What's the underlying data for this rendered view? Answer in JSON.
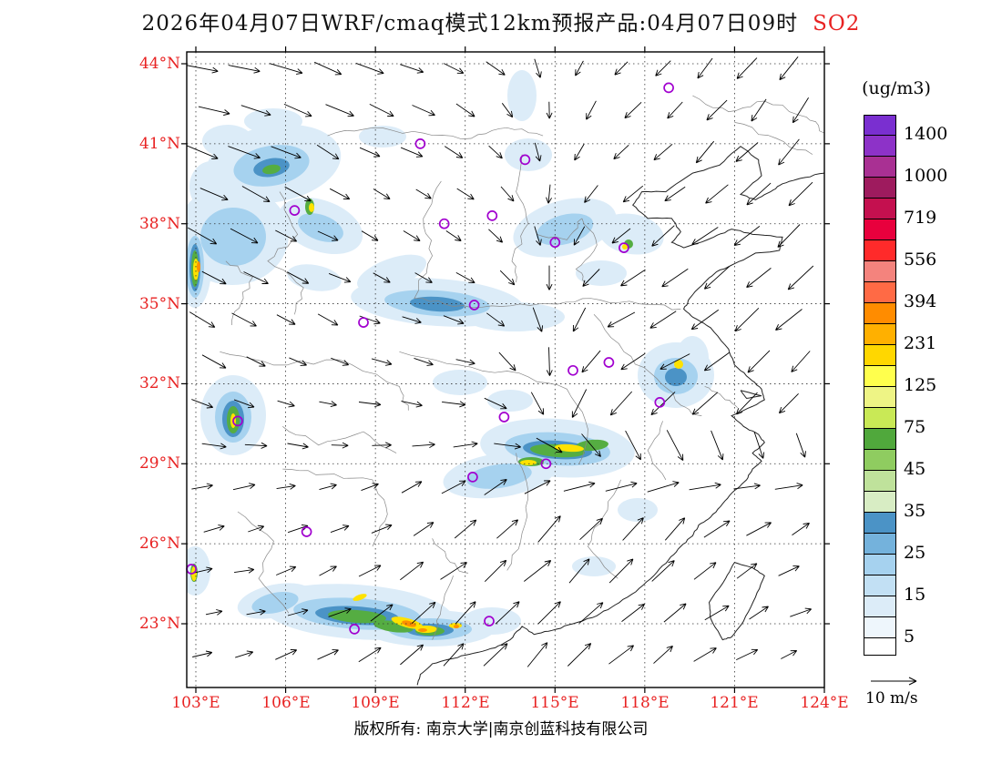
{
  "title": {
    "main": "2026年04月07日WRF/cmaq模式12km预报产品:04月07日09时",
    "species": "SO2"
  },
  "axes": {
    "lat_labels": [
      "44°N",
      "41°N",
      "38°N",
      "35°N",
      "32°N",
      "29°N",
      "26°N",
      "23°N"
    ],
    "lat_values": [
      44,
      41,
      38,
      35,
      32,
      29,
      26,
      23
    ],
    "lon_labels": [
      "103°E",
      "106°E",
      "109°E",
      "112°E",
      "115°E",
      "118°E",
      "121°E",
      "124°E"
    ],
    "lon_values": [
      103,
      106,
      109,
      112,
      115,
      118,
      121,
      124
    ]
  },
  "colorbar": {
    "unit_label": "(ug/m3)",
    "tick_labels_top_to_bottom": [
      "1400",
      "1000",
      "719",
      "556",
      "394",
      "231",
      "125",
      "75",
      "45",
      "35",
      "25",
      "15",
      "5"
    ],
    "cell_colors_bottom_to_top": [
      "#ffffff",
      "#eef6fc",
      "#dcecf8",
      "#c2e0f4",
      "#a6d2ef",
      "#74b2dc",
      "#4b93c6",
      "#d8edc4",
      "#bfe29b",
      "#8fcc60",
      "#50a83c",
      "#c9e956",
      "#eef485",
      "#ffff4d",
      "#ffd700",
      "#ffb000",
      "#ff8c00",
      "#ff6a45",
      "#f4837d",
      "#ff2a2a",
      "#e8003d",
      "#c4104f",
      "#9e1b5e",
      "#a93093",
      "#8d32c8",
      "#7a2fd0"
    ]
  },
  "wind_legend": {
    "label": "10 m/s"
  },
  "footer": {
    "copyright": "版权所有: 南京大学|南京创蓝科技有限公司"
  },
  "chart_data": {
    "type": "heatmap",
    "title": "2026年04月07日WRF/cmaq模式12km预报产品:04月07日09时 SO2",
    "units": "ug/m3",
    "levels": [
      5,
      15,
      25,
      35,
      45,
      75,
      125,
      231,
      394,
      556,
      719,
      1000,
      1400
    ],
    "x_ticks": [
      "103°E",
      "106°E",
      "109°E",
      "112°E",
      "115°E",
      "118°E",
      "121°E",
      "124°E"
    ],
    "y_ticks": [
      "23°N",
      "26°N",
      "29°N",
      "32°N",
      "35°N",
      "38°N",
      "41°N",
      "44°N"
    ],
    "wind_reference": "10 m/s",
    "legend_position": "right"
  },
  "stations_lonlat": [
    [
      118.8,
      43.1
    ],
    [
      110.5,
      41.0
    ],
    [
      114.0,
      40.4
    ],
    [
      106.3,
      38.5
    ],
    [
      112.9,
      38.3
    ],
    [
      111.3,
      38.0
    ],
    [
      115.0,
      37.3
    ],
    [
      117.3,
      37.1
    ],
    [
      112.3,
      34.95
    ],
    [
      108.6,
      34.3
    ],
    [
      116.8,
      32.8
    ],
    [
      115.6,
      32.5
    ],
    [
      118.5,
      31.3
    ],
    [
      104.4,
      30.6
    ],
    [
      113.3,
      30.75
    ],
    [
      114.7,
      29.0
    ],
    [
      112.25,
      28.5
    ],
    [
      106.7,
      26.45
    ],
    [
      102.85,
      25.05
    ],
    [
      108.3,
      22.8
    ],
    [
      112.8,
      23.1
    ]
  ],
  "level_colors": {
    "faint": "#dcecf8",
    "light": "#a6d2ef",
    "medium": "#4b93c6",
    "green": "#55ad42",
    "yellow": "#ffe200",
    "orange": "#ff9000"
  },
  "pollution_areas": [
    [
      300,
      180,
      75,
      42,
      -10,
      "faint"
    ],
    [
      255,
      258,
      62,
      55,
      0,
      "faint"
    ],
    [
      352,
      248,
      48,
      28,
      20,
      "faint"
    ],
    [
      480,
      332,
      95,
      26,
      4,
      "faint"
    ],
    [
      565,
      348,
      55,
      16,
      0,
      "faint"
    ],
    [
      620,
      250,
      58,
      30,
      -15,
      "faint"
    ],
    [
      580,
      170,
      26,
      18,
      0,
      "faint"
    ],
    [
      693,
      257,
      36,
      22,
      10,
      "faint"
    ],
    [
      742,
      412,
      42,
      36,
      0,
      "faint"
    ],
    [
      612,
      492,
      85,
      32,
      4,
      "faint"
    ],
    [
      548,
      522,
      62,
      24,
      -8,
      "faint"
    ],
    [
      256,
      456,
      36,
      44,
      0,
      "faint"
    ],
    [
      214,
      292,
      18,
      46,
      0,
      "faint"
    ],
    [
      392,
      672,
      105,
      30,
      4,
      "faint"
    ],
    [
      472,
      690,
      72,
      20,
      0,
      "faint"
    ],
    [
      302,
      660,
      42,
      18,
      -12,
      "faint"
    ],
    [
      540,
      682,
      32,
      15,
      0,
      "faint"
    ],
    [
      214,
      627,
      17,
      27,
      0,
      "faint"
    ],
    [
      300,
      133,
      32,
      14,
      0,
      "faint"
    ],
    [
      420,
      150,
      26,
      12,
      0,
      "faint"
    ],
    [
      573,
      105,
      16,
      28,
      0,
      "faint"
    ],
    [
      430,
      300,
      40,
      16,
      -20,
      "faint"
    ],
    [
      345,
      305,
      30,
      14,
      10,
      "faint"
    ],
    [
      250,
      155,
      28,
      18,
      0,
      "faint"
    ],
    [
      232,
      205,
      24,
      28,
      0,
      "faint"
    ],
    [
      660,
      300,
      28,
      14,
      0,
      "faint"
    ],
    [
      760,
      393,
      18,
      24,
      0,
      "faint"
    ],
    [
      700,
      560,
      22,
      13,
      0,
      "faint"
    ],
    [
      652,
      622,
      24,
      11,
      0,
      "faint"
    ],
    [
      505,
      420,
      30,
      14,
      0,
      "faint"
    ],
    [
      560,
      440,
      25,
      12,
      0,
      "faint"
    ],
    [
      298,
      182,
      42,
      22,
      -10,
      "light"
    ],
    [
      256,
      260,
      36,
      32,
      0,
      "light"
    ],
    [
      480,
      333,
      58,
      14,
      4,
      "light"
    ],
    [
      620,
      252,
      32,
      16,
      -15,
      "light"
    ],
    [
      612,
      493,
      58,
      18,
      4,
      "light"
    ],
    [
      392,
      674,
      70,
      17,
      4,
      "light"
    ],
    [
      256,
      458,
      20,
      28,
      0,
      "light"
    ],
    [
      742,
      413,
      24,
      20,
      0,
      "light"
    ],
    [
      214,
      293,
      10,
      34,
      0,
      "light"
    ],
    [
      548,
      523,
      36,
      13,
      -8,
      "light"
    ],
    [
      352,
      250,
      26,
      14,
      20,
      "light"
    ],
    [
      302,
      662,
      26,
      11,
      -12,
      "light"
    ],
    [
      472,
      691,
      46,
      12,
      0,
      "light"
    ],
    [
      480,
      334,
      30,
      8,
      4,
      "medium"
    ],
    [
      612,
      494,
      38,
      10,
      4,
      "medium"
    ],
    [
      392,
      676,
      46,
      10,
      4,
      "medium"
    ],
    [
      256,
      460,
      12,
      20,
      0,
      "medium"
    ],
    [
      214,
      294,
      6,
      26,
      0,
      "medium"
    ],
    [
      298,
      184,
      20,
      10,
      -10,
      "medium"
    ],
    [
      742,
      414,
      12,
      10,
      0,
      "medium"
    ],
    [
      472,
      692,
      26,
      7,
      0,
      "medium"
    ],
    [
      612,
      495,
      30,
      7,
      4,
      "green"
    ],
    [
      650,
      489,
      18,
      6,
      -5,
      "green"
    ],
    [
      392,
      677,
      32,
      7,
      4,
      "green"
    ],
    [
      432,
      688,
      22,
      6,
      8,
      "green"
    ],
    [
      256,
      461,
      7,
      15,
      0,
      "green"
    ],
    [
      214,
      295,
      4,
      20,
      0,
      "green"
    ],
    [
      583,
      507,
      14,
      5,
      0,
      "green"
    ],
    [
      340,
      227,
      5,
      9,
      0,
      "green"
    ],
    [
      690,
      268,
      5,
      5,
      0,
      "green"
    ],
    [
      298,
      186,
      10,
      5,
      -10,
      "green"
    ],
    [
      472,
      693,
      16,
      5,
      0,
      "green"
    ],
    [
      213,
      629,
      4,
      10,
      0,
      "green"
    ],
    [
      447,
      684,
      18,
      5,
      15,
      "yellow"
    ],
    [
      468,
      691,
      12,
      4,
      0,
      "yellow"
    ],
    [
      500,
      687,
      7,
      3,
      0,
      "yellow"
    ],
    [
      625,
      492,
      16,
      4,
      4,
      "yellow"
    ],
    [
      580,
      508,
      9,
      3,
      0,
      "yellow"
    ],
    [
      215,
      296,
      3,
      12,
      0,
      "yellow"
    ],
    [
      256,
      462,
      3,
      8,
      0,
      "yellow"
    ],
    [
      342,
      228,
      3,
      5,
      0,
      "yellow"
    ],
    [
      745,
      400,
      5,
      5,
      0,
      "yellow"
    ],
    [
      213,
      630,
      3,
      8,
      0,
      "yellow"
    ],
    [
      395,
      656,
      8,
      3,
      -20,
      "yellow"
    ],
    [
      686,
      271,
      3,
      3,
      0,
      "yellow"
    ],
    [
      449,
      685,
      8,
      3,
      15,
      "orange"
    ],
    [
      464,
      692,
      5,
      2,
      0,
      "orange"
    ],
    [
      218,
      293,
      2,
      6,
      0,
      "orange"
    ],
    [
      501,
      688,
      3,
      2,
      0,
      "orange"
    ]
  ],
  "wind": {
    "grid_step": 46
  }
}
